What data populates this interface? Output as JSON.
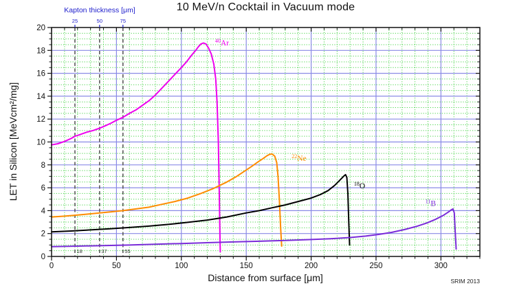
{
  "chart_data": {
    "type": "line",
    "title": "10 MeV/n Cocktail in Vacuum mode",
    "xlabel": "Distance from surface [μm]",
    "ylabel": "LET in Silicon [MeVcm²/mg]",
    "annotation": "SRIM 2013",
    "xlim": [
      0,
      330
    ],
    "ylim": [
      0,
      20
    ],
    "x_major": 50,
    "x_minor": 10,
    "y_major": 2,
    "y_minor": 0.5,
    "grid": {
      "major_color": "#8a8ae6",
      "minor_color": "#4ad44a",
      "major_on": true,
      "minor_on": true
    },
    "legend_position": "none",
    "top_axis": {
      "label": "Kapton thickness [μm]",
      "color": "#2020cc",
      "ticks": [
        {
          "label": "25",
          "x": 18
        },
        {
          "label": "50",
          "x": 37
        },
        {
          "label": "75",
          "x": 55
        }
      ]
    },
    "marker_lines": {
      "color": "#5a5a5a",
      "items": [
        {
          "x": 18,
          "label": "18"
        },
        {
          "x": 37,
          "label": "37"
        },
        {
          "x": 55,
          "label": "55"
        }
      ]
    },
    "series": [
      {
        "name": "⁴⁰Ar",
        "mass": "40",
        "symbol": "Ar",
        "color": "#ee00ee",
        "peak": {
          "x": 116,
          "let": 18.65
        },
        "label_at": [
          126,
          18.45
        ],
        "points": [
          [
            0,
            9.75
          ],
          [
            5,
            9.85
          ],
          [
            10,
            10.05
          ],
          [
            15,
            10.3
          ],
          [
            18,
            10.5
          ],
          [
            22,
            10.65
          ],
          [
            27,
            10.85
          ],
          [
            32,
            11.0
          ],
          [
            37,
            11.2
          ],
          [
            42,
            11.45
          ],
          [
            46,
            11.65
          ],
          [
            50,
            11.9
          ],
          [
            55,
            12.15
          ],
          [
            60,
            12.5
          ],
          [
            65,
            12.8
          ],
          [
            70,
            13.2
          ],
          [
            75,
            13.6
          ],
          [
            80,
            14.1
          ],
          [
            85,
            14.7
          ],
          [
            90,
            15.3
          ],
          [
            95,
            15.9
          ],
          [
            100,
            16.5
          ],
          [
            104,
            17.0
          ],
          [
            108,
            17.6
          ],
          [
            111,
            18.0
          ],
          [
            113,
            18.3
          ],
          [
            115,
            18.55
          ],
          [
            117,
            18.65
          ],
          [
            119,
            18.55
          ],
          [
            121,
            18.2
          ],
          [
            123,
            17.7
          ],
          [
            125,
            16.8
          ],
          [
            126.5,
            15.5
          ],
          [
            127.5,
            13.5
          ],
          [
            128.5,
            10.0
          ],
          [
            129.3,
            5.0
          ],
          [
            129.8,
            1.5
          ],
          [
            130,
            0.4
          ]
        ]
      },
      {
        "name": "²²Ne",
        "mass": "22",
        "symbol": "Ne",
        "color": "#ff8c00",
        "peak": {
          "x": 169,
          "let": 8.95
        },
        "label_at": [
          185,
          8.35
        ],
        "points": [
          [
            0,
            3.45
          ],
          [
            10,
            3.52
          ],
          [
            18,
            3.6
          ],
          [
            28,
            3.7
          ],
          [
            37,
            3.8
          ],
          [
            46,
            3.9
          ],
          [
            55,
            4.0
          ],
          [
            65,
            4.15
          ],
          [
            75,
            4.3
          ],
          [
            85,
            4.55
          ],
          [
            95,
            4.8
          ],
          [
            105,
            5.1
          ],
          [
            115,
            5.5
          ],
          [
            125,
            5.95
          ],
          [
            135,
            6.5
          ],
          [
            142,
            6.95
          ],
          [
            148,
            7.4
          ],
          [
            154,
            7.85
          ],
          [
            159,
            8.25
          ],
          [
            163,
            8.55
          ],
          [
            166,
            8.8
          ],
          [
            168,
            8.92
          ],
          [
            170,
            8.95
          ],
          [
            172,
            8.75
          ],
          [
            173.5,
            8.2
          ],
          [
            174.5,
            7.0
          ],
          [
            175.5,
            5.0
          ],
          [
            176.5,
            2.5
          ],
          [
            177.3,
            0.9
          ]
        ]
      },
      {
        "name": "¹⁸O",
        "mass": "18",
        "symbol": "O",
        "color": "#000000",
        "peak": {
          "x": 226,
          "let": 7.15
        },
        "label_at": [
          233,
          5.95
        ],
        "points": [
          [
            0,
            2.15
          ],
          [
            15,
            2.22
          ],
          [
            30,
            2.32
          ],
          [
            45,
            2.42
          ],
          [
            60,
            2.53
          ],
          [
            75,
            2.65
          ],
          [
            90,
            2.8
          ],
          [
            105,
            2.98
          ],
          [
            120,
            3.18
          ],
          [
            135,
            3.45
          ],
          [
            150,
            3.8
          ],
          [
            160,
            4.0
          ],
          [
            170,
            4.25
          ],
          [
            180,
            4.5
          ],
          [
            190,
            4.8
          ],
          [
            200,
            5.1
          ],
          [
            207,
            5.4
          ],
          [
            213,
            5.75
          ],
          [
            218,
            6.2
          ],
          [
            222,
            6.65
          ],
          [
            225,
            7.0
          ],
          [
            226.5,
            7.15
          ],
          [
            227.5,
            6.9
          ],
          [
            228.3,
            5.5
          ],
          [
            229,
            3.0
          ],
          [
            229.6,
            1.0
          ]
        ]
      },
      {
        "name": "¹¹B",
        "mass": "11",
        "symbol": "B",
        "color": "#7a2bd9",
        "peak": {
          "x": 309,
          "let": 4.15
        },
        "label_at": [
          288,
          4.4
        ],
        "points": [
          [
            0,
            0.85
          ],
          [
            20,
            0.9
          ],
          [
            40,
            0.95
          ],
          [
            60,
            1.0
          ],
          [
            80,
            1.07
          ],
          [
            100,
            1.13
          ],
          [
            120,
            1.2
          ],
          [
            140,
            1.27
          ],
          [
            160,
            1.33
          ],
          [
            180,
            1.4
          ],
          [
            200,
            1.48
          ],
          [
            215,
            1.55
          ],
          [
            230,
            1.65
          ],
          [
            242,
            1.78
          ],
          [
            252,
            1.92
          ],
          [
            262,
            2.1
          ],
          [
            272,
            2.35
          ],
          [
            281,
            2.62
          ],
          [
            289,
            2.92
          ],
          [
            296,
            3.25
          ],
          [
            302,
            3.6
          ],
          [
            306,
            3.9
          ],
          [
            308,
            4.08
          ],
          [
            309.3,
            4.15
          ],
          [
            310.3,
            3.8
          ],
          [
            311,
            2.2
          ],
          [
            311.7,
            0.65
          ]
        ]
      }
    ]
  }
}
